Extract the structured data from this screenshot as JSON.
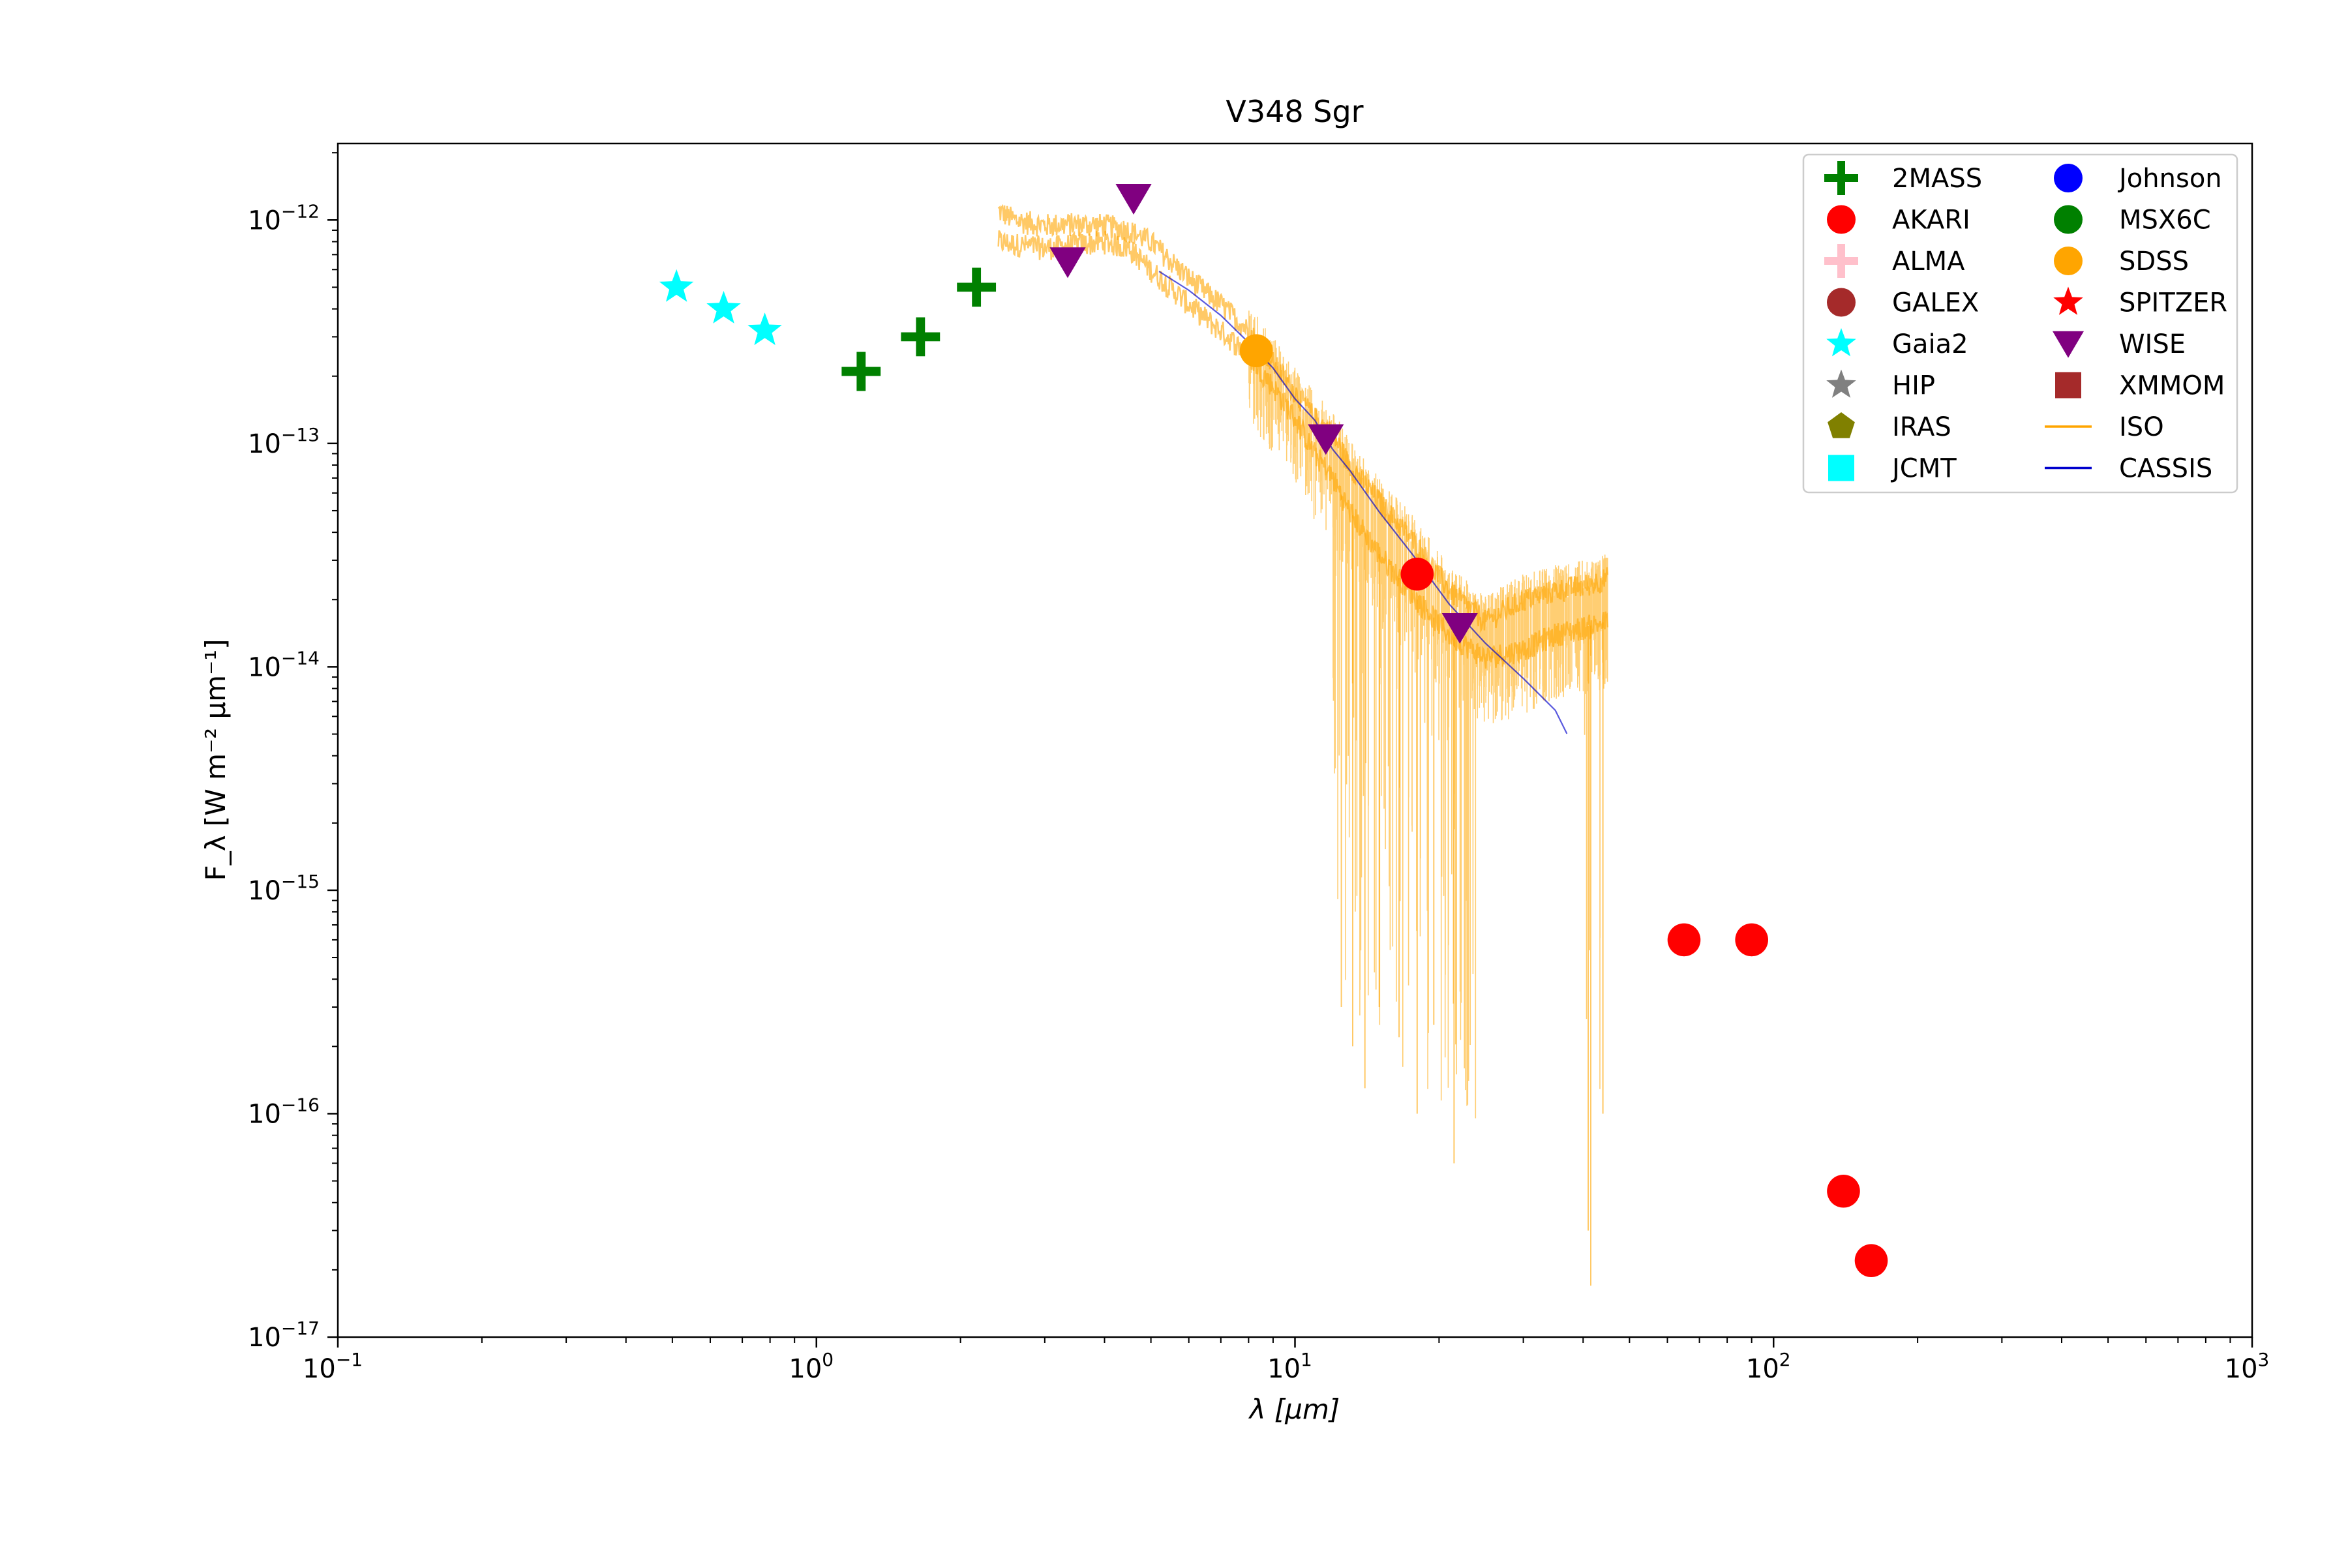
{
  "chart_data": {
    "type": "scatter",
    "title": "V348 Sgr",
    "xlabel": "λ [μm]",
    "ylabel": "F_λ [W m⁻² μm⁻¹]",
    "xscale": "log",
    "yscale": "log",
    "xlim": [
      0.1,
      1000
    ],
    "ylim": [
      1e-17,
      2.2e-12
    ],
    "x_ticks": [
      {
        "value": 0.1,
        "base": "10",
        "exp": "−1"
      },
      {
        "value": 1,
        "base": "10",
        "exp": "0"
      },
      {
        "value": 10,
        "base": "10",
        "exp": "1"
      },
      {
        "value": 100,
        "base": "10",
        "exp": "2"
      },
      {
        "value": 1000,
        "base": "10",
        "exp": "3"
      }
    ],
    "y_ticks": [
      {
        "value": 1e-17,
        "base": "10",
        "exp": "−17"
      },
      {
        "value": 1e-16,
        "base": "10",
        "exp": "−16"
      },
      {
        "value": 1e-15,
        "base": "10",
        "exp": "−15"
      },
      {
        "value": 1e-14,
        "base": "10",
        "exp": "−14"
      },
      {
        "value": 1e-13,
        "base": "10",
        "exp": "−13"
      },
      {
        "value": 1e-12,
        "base": "10",
        "exp": "−12"
      }
    ],
    "legend_position": "top-right",
    "legend": [
      {
        "label": "2MASS",
        "marker": "plus",
        "color": "#008000"
      },
      {
        "label": "AKARI",
        "marker": "circle",
        "color": "#ff0000"
      },
      {
        "label": "ALMA",
        "marker": "plus",
        "color": "#ffc0cb"
      },
      {
        "label": "GALEX",
        "marker": "circle",
        "color": "#a52a2a"
      },
      {
        "label": "Gaia2",
        "marker": "star",
        "color": "#00ffff"
      },
      {
        "label": "HIP",
        "marker": "star",
        "color": "#808080"
      },
      {
        "label": "IRAS",
        "marker": "pentagon",
        "color": "#808000"
      },
      {
        "label": "JCMT",
        "marker": "square",
        "color": "#00ffff"
      },
      {
        "label": "Johnson",
        "marker": "circle",
        "color": "#0000ff"
      },
      {
        "label": "MSX6C",
        "marker": "circle",
        "color": "#008000"
      },
      {
        "label": "SDSS",
        "marker": "circle",
        "color": "#ffa500"
      },
      {
        "label": "SPITZER",
        "marker": "star",
        "color": "#ff0000"
      },
      {
        "label": "WISE",
        "marker": "triangle-down",
        "color": "#800080"
      },
      {
        "label": "XMMOM",
        "marker": "square",
        "color": "#a52a2a"
      },
      {
        "label": "ISO",
        "marker": "line",
        "color": "#ffa500"
      },
      {
        "label": "CASSIS",
        "marker": "line",
        "color": "#0000cd"
      }
    ],
    "photometry": [
      {
        "survey": "Gaia2",
        "marker": "star",
        "color": "#00ffff",
        "points": [
          [
            0.51,
            5e-13
          ],
          [
            0.64,
            4e-13
          ],
          [
            0.78,
            3.2e-13
          ]
        ]
      },
      {
        "survey": "2MASS",
        "marker": "plus",
        "color": "#008000",
        "points": [
          [
            1.24,
            2.1e-13
          ],
          [
            1.65,
            3e-13
          ],
          [
            2.16,
            5e-13
          ]
        ]
      },
      {
        "survey": "WISE",
        "marker": "triangle-down",
        "color": "#800080",
        "points": [
          [
            3.35,
            6.5e-13
          ],
          [
            4.6,
            1.25e-12
          ],
          [
            11.6,
            1.05e-13
          ],
          [
            22.1,
            1.5e-14
          ]
        ]
      },
      {
        "survey": "AKARI",
        "marker": "circle",
        "color": "#ff0000",
        "points": [
          [
            18,
            2.6e-14
          ],
          [
            65,
            6e-16
          ],
          [
            90,
            6e-16
          ],
          [
            140,
            4.5e-17
          ],
          [
            160,
            2.2e-17
          ]
        ]
      },
      {
        "survey": "SDSS",
        "marker": "circle",
        "color": "#ffa500",
        "points": [
          [
            8.3,
            2.6e-13
          ]
        ]
      }
    ],
    "spectra": [
      {
        "name": "ISO",
        "color": "#ffa500",
        "x_range": [
          2.4,
          45
        ],
        "upper_envelope": [
          [
            2.4,
            1.1e-12
          ],
          [
            2.6,
            1e-12
          ],
          [
            3.0,
            9.5e-13
          ],
          [
            3.5,
            9.6e-13
          ],
          [
            4.0,
            9.5e-13
          ],
          [
            4.5,
            9e-13
          ],
          [
            5.0,
            8e-13
          ],
          [
            6.0,
            5.5e-13
          ],
          [
            7.0,
            4.2e-13
          ],
          [
            8.0,
            3.2e-13
          ],
          [
            9.0,
            2.3e-13
          ],
          [
            10.0,
            1.7e-13
          ],
          [
            11.0,
            1.3e-13
          ],
          [
            12.0,
            1.1e-13
          ],
          [
            13.0,
            8e-14
          ],
          [
            15.0,
            5.5e-14
          ],
          [
            18.0,
            3.5e-14
          ],
          [
            21.0,
            2.2e-14
          ],
          [
            25.0,
            1.6e-14
          ],
          [
            30.0,
            2e-14
          ],
          [
            35.0,
            2.2e-14
          ],
          [
            40.0,
            2.3e-14
          ],
          [
            45.0,
            2.5e-14
          ]
        ],
        "lower_envelope": [
          [
            2.4,
            8e-13
          ],
          [
            2.6,
            7.8e-13
          ],
          [
            3.0,
            7.5e-13
          ],
          [
            3.5,
            7.8e-13
          ],
          [
            4.0,
            8e-13
          ],
          [
            4.5,
            7.5e-13
          ],
          [
            5.0,
            6e-13
          ],
          [
            6.0,
            4.2e-13
          ],
          [
            7.0,
            3.2e-13
          ],
          [
            8.0,
            2.5e-13
          ],
          [
            9.0,
            1.8e-13
          ],
          [
            10.0,
            1.3e-13
          ],
          [
            11.0,
            9e-14
          ],
          [
            12.0,
            7e-14
          ],
          [
            13.0,
            5e-14
          ],
          [
            15.0,
            3.2e-14
          ],
          [
            18.0,
            2e-14
          ],
          [
            21.0,
            1.4e-14
          ],
          [
            25.0,
            1.1e-14
          ],
          [
            30.0,
            1.2e-14
          ],
          [
            35.0,
            1.4e-14
          ],
          [
            40.0,
            1.5e-14
          ],
          [
            45.0,
            1.6e-14
          ]
        ],
        "dropouts": [
          [
            12.5,
            3e-16
          ],
          [
            13.2,
            2e-16
          ],
          [
            14.0,
            1.3e-16
          ],
          [
            15.0,
            3e-16
          ],
          [
            16.5,
            2.2e-16
          ],
          [
            18.0,
            1e-16
          ],
          [
            19.5,
            2.5e-16
          ],
          [
            21.5,
            6e-17
          ],
          [
            41.0,
            3e-17
          ],
          [
            41.5,
            1.7e-17
          ],
          [
            44.0,
            1e-16
          ]
        ]
      },
      {
        "name": "CASSIS",
        "color": "#0000cd",
        "points": [
          [
            5.2,
            6e-13
          ],
          [
            6.0,
            4.8e-13
          ],
          [
            7.0,
            3.7e-13
          ],
          [
            8.0,
            2.8e-13
          ],
          [
            9.0,
            2.2e-13
          ],
          [
            10.0,
            1.6e-13
          ],
          [
            11.0,
            1.25e-13
          ],
          [
            12.0,
            9.5e-14
          ],
          [
            13.0,
            7.5e-14
          ],
          [
            15.0,
            5e-14
          ],
          [
            18.0,
            3e-14
          ],
          [
            21.0,
            1.9e-14
          ],
          [
            25.0,
            1.3e-14
          ],
          [
            30.0,
            9e-15
          ],
          [
            35.0,
            6.5e-15
          ],
          [
            37.0,
            5e-15
          ]
        ]
      }
    ]
  }
}
